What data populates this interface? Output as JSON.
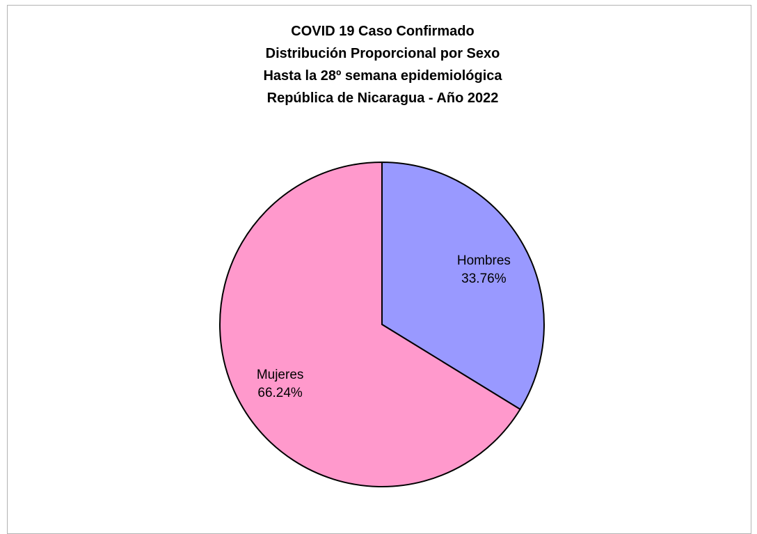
{
  "chart_data": {
    "type": "pie",
    "title_lines": [
      "COVID 19 Caso Confirmado",
      "Distribución Proporcional por Sexo",
      "Hasta la 28º semana epidemiológica",
      "República de Nicaragua - Año 2022"
    ],
    "slices": [
      {
        "name": "Hombres",
        "value": 33.76,
        "label": "33.76%",
        "color": "#9999ff"
      },
      {
        "name": "Mujeres",
        "value": 66.24,
        "label": "66.24%",
        "color": "#ff99cc"
      }
    ],
    "start_angle": "12 o'clock",
    "direction": "clockwise",
    "border_color": "#000000"
  }
}
